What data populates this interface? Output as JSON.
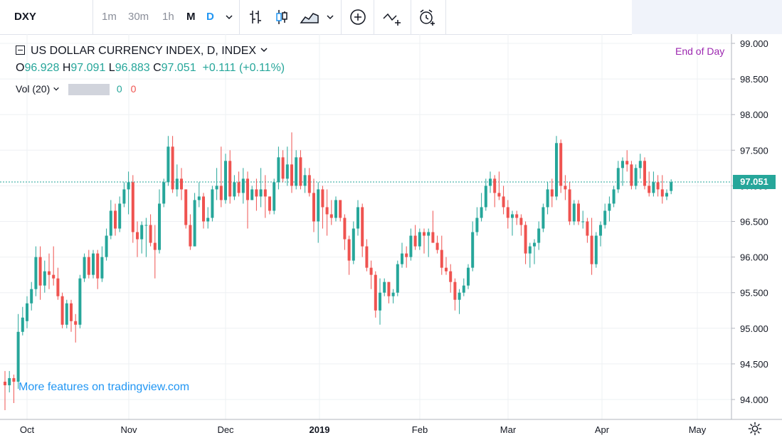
{
  "toolbar": {
    "symbol": "DXY",
    "intervals": [
      "1m",
      "30m",
      "1h",
      "M",
      "D"
    ],
    "active_interval": "D"
  },
  "legend": {
    "title": "US DOLLAR CURRENCY INDEX, D, INDEX",
    "open_label": "O",
    "open": "96.928",
    "high_label": "H",
    "high": "97.091",
    "low_label": "L",
    "low": "96.883",
    "close_label": "C",
    "close": "97.051",
    "change": "+0.111 (+0.11%)",
    "volume_label": "Vol (20)",
    "vol_value_a": "0",
    "vol_value_b": "0"
  },
  "status": {
    "end_of_day": "End of Day"
  },
  "promo": "More features on tradingview.com",
  "last_price_label": "97.051",
  "colors": {
    "up": "#26a69a",
    "down": "#ef5350",
    "accent": "#2196f3",
    "eod": "#9c27b0"
  },
  "chart_data": {
    "type": "candlestick",
    "title": "US DOLLAR CURRENCY INDEX, D, INDEX",
    "x_tick_labels": [
      "Oct",
      "Nov",
      "Dec",
      "2019",
      "Feb",
      "Mar",
      "Apr",
      "May"
    ],
    "y_tick_labels": [
      "99.000",
      "98.500",
      "98.000",
      "97.500",
      "97.000",
      "96.500",
      "96.000",
      "95.500",
      "95.000",
      "94.500",
      "94.000"
    ],
    "ylim": [
      93.8,
      99.05
    ],
    "last_price": 97.051,
    "grid": true,
    "series": [
      {
        "o": 94.25,
        "h": 94.4,
        "l": 93.85,
        "c": 94.2
      },
      {
        "o": 94.2,
        "h": 94.4,
        "l": 94.1,
        "c": 94.3
      },
      {
        "o": 94.3,
        "h": 94.35,
        "l": 93.95,
        "c": 94.25
      },
      {
        "o": 94.25,
        "h": 95.2,
        "l": 94.15,
        "c": 94.95
      },
      {
        "o": 94.95,
        "h": 95.3,
        "l": 94.9,
        "c": 95.15
      },
      {
        "o": 95.1,
        "h": 95.45,
        "l": 95.0,
        "c": 95.35
      },
      {
        "o": 95.35,
        "h": 95.65,
        "l": 95.25,
        "c": 95.55
      },
      {
        "o": 95.55,
        "h": 96.15,
        "l": 95.45,
        "c": 96.0
      },
      {
        "o": 96.0,
        "h": 96.15,
        "l": 95.4,
        "c": 95.6
      },
      {
        "o": 95.6,
        "h": 95.95,
        "l": 95.5,
        "c": 95.8
      },
      {
        "o": 95.8,
        "h": 96.05,
        "l": 95.55,
        "c": 95.75
      },
      {
        "o": 95.75,
        "h": 96.15,
        "l": 95.6,
        "c": 95.7
      },
      {
        "o": 95.7,
        "h": 95.85,
        "l": 95.4,
        "c": 95.45
      },
      {
        "o": 95.45,
        "h": 95.5,
        "l": 95.0,
        "c": 95.05
      },
      {
        "o": 95.05,
        "h": 95.4,
        "l": 95.0,
        "c": 95.35
      },
      {
        "o": 95.35,
        "h": 95.4,
        "l": 94.95,
        "c": 95.1
      },
      {
        "o": 95.1,
        "h": 95.2,
        "l": 94.8,
        "c": 95.05
      },
      {
        "o": 95.05,
        "h": 95.75,
        "l": 95.0,
        "c": 95.7
      },
      {
        "o": 95.7,
        "h": 96.05,
        "l": 95.65,
        "c": 96.0
      },
      {
        "o": 96.0,
        "h": 96.1,
        "l": 95.7,
        "c": 95.75
      },
      {
        "o": 95.75,
        "h": 96.1,
        "l": 95.7,
        "c": 96.05
      },
      {
        "o": 96.05,
        "h": 96.1,
        "l": 95.55,
        "c": 95.7
      },
      {
        "o": 95.7,
        "h": 96.15,
        "l": 95.65,
        "c": 96.0
      },
      {
        "o": 96.0,
        "h": 96.4,
        "l": 95.95,
        "c": 96.3
      },
      {
        "o": 96.3,
        "h": 96.8,
        "l": 96.25,
        "c": 96.65
      },
      {
        "o": 96.65,
        "h": 96.75,
        "l": 96.3,
        "c": 96.4
      },
      {
        "o": 96.4,
        "h": 96.85,
        "l": 96.35,
        "c": 96.75
      },
      {
        "o": 96.75,
        "h": 97.05,
        "l": 96.7,
        "c": 96.95
      },
      {
        "o": 96.95,
        "h": 97.2,
        "l": 96.6,
        "c": 97.05
      },
      {
        "o": 97.05,
        "h": 97.15,
        "l": 96.2,
        "c": 96.35
      },
      {
        "o": 96.35,
        "h": 96.5,
        "l": 96.0,
        "c": 96.25
      },
      {
        "o": 96.25,
        "h": 96.5,
        "l": 96.05,
        "c": 96.45
      },
      {
        "o": 96.45,
        "h": 96.55,
        "l": 96.0,
        "c": 96.45
      },
      {
        "o": 96.45,
        "h": 96.6,
        "l": 96.15,
        "c": 96.2
      },
      {
        "o": 96.2,
        "h": 96.45,
        "l": 95.7,
        "c": 96.1
      },
      {
        "o": 96.1,
        "h": 96.95,
        "l": 96.05,
        "c": 96.75
      },
      {
        "o": 96.75,
        "h": 97.1,
        "l": 96.7,
        "c": 97.05
      },
      {
        "o": 97.05,
        "h": 97.7,
        "l": 97.0,
        "c": 97.55
      },
      {
        "o": 97.55,
        "h": 97.7,
        "l": 96.9,
        "c": 96.95
      },
      {
        "o": 96.95,
        "h": 97.3,
        "l": 96.85,
        "c": 97.1
      },
      {
        "o": 97.1,
        "h": 97.25,
        "l": 96.8,
        "c": 96.95
      },
      {
        "o": 96.95,
        "h": 96.95,
        "l": 96.4,
        "c": 96.45
      },
      {
        "o": 96.45,
        "h": 96.6,
        "l": 96.1,
        "c": 96.15
      },
      {
        "o": 96.15,
        "h": 96.9,
        "l": 96.15,
        "c": 96.8
      },
      {
        "o": 96.8,
        "h": 97.05,
        "l": 96.7,
        "c": 96.85
      },
      {
        "o": 96.85,
        "h": 96.9,
        "l": 96.4,
        "c": 96.5
      },
      {
        "o": 96.5,
        "h": 96.7,
        "l": 96.4,
        "c": 96.55
      },
      {
        "o": 96.55,
        "h": 97.0,
        "l": 96.5,
        "c": 96.95
      },
      {
        "o": 96.95,
        "h": 97.25,
        "l": 96.8,
        "c": 97.0
      },
      {
        "o": 97.0,
        "h": 97.55,
        "l": 96.7,
        "c": 96.8
      },
      {
        "o": 96.8,
        "h": 97.45,
        "l": 96.75,
        "c": 97.35
      },
      {
        "o": 97.35,
        "h": 97.5,
        "l": 96.75,
        "c": 96.85
      },
      {
        "o": 96.85,
        "h": 97.15,
        "l": 96.8,
        "c": 97.05
      },
      {
        "o": 97.05,
        "h": 97.2,
        "l": 96.85,
        "c": 96.9
      },
      {
        "o": 96.9,
        "h": 97.25,
        "l": 96.75,
        "c": 97.1
      },
      {
        "o": 97.1,
        "h": 97.2,
        "l": 96.4,
        "c": 96.8
      },
      {
        "o": 96.8,
        "h": 97.0,
        "l": 96.8,
        "c": 96.95
      },
      {
        "o": 96.95,
        "h": 97.1,
        "l": 96.65,
        "c": 96.85
      },
      {
        "o": 96.85,
        "h": 97.25,
        "l": 96.7,
        "c": 96.95
      },
      {
        "o": 96.95,
        "h": 97.15,
        "l": 96.55,
        "c": 96.85
      },
      {
        "o": 96.85,
        "h": 96.85,
        "l": 96.6,
        "c": 96.65
      },
      {
        "o": 96.65,
        "h": 97.1,
        "l": 96.6,
        "c": 97.05
      },
      {
        "o": 97.05,
        "h": 97.55,
        "l": 96.95,
        "c": 97.4
      },
      {
        "o": 97.4,
        "h": 97.5,
        "l": 97.05,
        "c": 97.1
      },
      {
        "o": 97.1,
        "h": 97.55,
        "l": 97.0,
        "c": 97.3
      },
      {
        "o": 97.3,
        "h": 97.75,
        "l": 96.9,
        "c": 97.0
      },
      {
        "o": 97.0,
        "h": 97.5,
        "l": 96.95,
        "c": 97.4
      },
      {
        "o": 97.4,
        "h": 97.5,
        "l": 96.95,
        "c": 97.0
      },
      {
        "o": 97.0,
        "h": 97.25,
        "l": 96.9,
        "c": 97.15
      },
      {
        "o": 97.15,
        "h": 97.25,
        "l": 96.85,
        "c": 96.9
      },
      {
        "o": 96.9,
        "h": 97.1,
        "l": 96.35,
        "c": 96.5
      },
      {
        "o": 96.5,
        "h": 97.05,
        "l": 96.2,
        "c": 96.95
      },
      {
        "o": 96.95,
        "h": 97.0,
        "l": 96.4,
        "c": 96.7
      },
      {
        "o": 96.7,
        "h": 96.95,
        "l": 96.3,
        "c": 96.6
      },
      {
        "o": 96.6,
        "h": 96.8,
        "l": 96.45,
        "c": 96.55
      },
      {
        "o": 96.55,
        "h": 96.85,
        "l": 96.5,
        "c": 96.8
      },
      {
        "o": 96.8,
        "h": 96.8,
        "l": 96.5,
        "c": 96.55
      },
      {
        "o": 96.55,
        "h": 96.6,
        "l": 96.1,
        "c": 96.25
      },
      {
        "o": 96.25,
        "h": 96.3,
        "l": 95.75,
        "c": 95.95
      },
      {
        "o": 95.95,
        "h": 96.5,
        "l": 95.9,
        "c": 96.4
      },
      {
        "o": 96.4,
        "h": 96.8,
        "l": 96.3,
        "c": 96.7
      },
      {
        "o": 96.7,
        "h": 96.75,
        "l": 96.0,
        "c": 96.15
      },
      {
        "o": 96.15,
        "h": 96.25,
        "l": 95.8,
        "c": 95.85
      },
      {
        "o": 95.85,
        "h": 95.95,
        "l": 95.55,
        "c": 95.75
      },
      {
        "o": 95.75,
        "h": 95.8,
        "l": 95.15,
        "c": 95.25
      },
      {
        "o": 95.25,
        "h": 95.7,
        "l": 95.05,
        "c": 95.5
      },
      {
        "o": 95.5,
        "h": 95.7,
        "l": 95.45,
        "c": 95.65
      },
      {
        "o": 95.65,
        "h": 95.65,
        "l": 95.35,
        "c": 95.45
      },
      {
        "o": 95.45,
        "h": 95.55,
        "l": 95.35,
        "c": 95.5
      },
      {
        "o": 95.5,
        "h": 95.95,
        "l": 95.45,
        "c": 95.9
      },
      {
        "o": 95.9,
        "h": 96.2,
        "l": 95.85,
        "c": 96.05
      },
      {
        "o": 96.05,
        "h": 96.15,
        "l": 95.85,
        "c": 96.0
      },
      {
        "o": 96.0,
        "h": 96.4,
        "l": 95.95,
        "c": 96.3
      },
      {
        "o": 96.3,
        "h": 96.45,
        "l": 96.1,
        "c": 96.15
      },
      {
        "o": 96.15,
        "h": 96.4,
        "l": 96.1,
        "c": 96.35
      },
      {
        "o": 96.35,
        "h": 96.4,
        "l": 96.05,
        "c": 96.3
      },
      {
        "o": 96.3,
        "h": 96.4,
        "l": 96.0,
        "c": 96.35
      },
      {
        "o": 96.35,
        "h": 96.65,
        "l": 96.2,
        "c": 96.2
      },
      {
        "o": 96.2,
        "h": 96.3,
        "l": 96.05,
        "c": 96.1
      },
      {
        "o": 96.1,
        "h": 96.3,
        "l": 95.75,
        "c": 95.85
      },
      {
        "o": 95.85,
        "h": 96.0,
        "l": 95.75,
        "c": 95.8
      },
      {
        "o": 95.8,
        "h": 95.9,
        "l": 95.5,
        "c": 95.65
      },
      {
        "o": 95.65,
        "h": 95.7,
        "l": 95.25,
        "c": 95.4
      },
      {
        "o": 95.4,
        "h": 95.55,
        "l": 95.2,
        "c": 95.5
      },
      {
        "o": 95.5,
        "h": 95.7,
        "l": 95.45,
        "c": 95.6
      },
      {
        "o": 95.6,
        "h": 95.9,
        "l": 95.55,
        "c": 95.85
      },
      {
        "o": 95.85,
        "h": 96.5,
        "l": 95.8,
        "c": 96.35
      },
      {
        "o": 96.35,
        "h": 96.7,
        "l": 96.3,
        "c": 96.55
      },
      {
        "o": 96.55,
        "h": 96.9,
        "l": 96.5,
        "c": 96.7
      },
      {
        "o": 96.7,
        "h": 97.1,
        "l": 96.65,
        "c": 97.0
      },
      {
        "o": 97.0,
        "h": 97.2,
        "l": 96.9,
        "c": 97.1
      },
      {
        "o": 97.1,
        "h": 97.15,
        "l": 96.7,
        "c": 96.9
      },
      {
        "o": 96.9,
        "h": 97.2,
        "l": 96.8,
        "c": 96.85
      },
      {
        "o": 96.85,
        "h": 97.0,
        "l": 96.6,
        "c": 96.7
      },
      {
        "o": 96.7,
        "h": 96.8,
        "l": 96.4,
        "c": 96.55
      },
      {
        "o": 96.55,
        "h": 96.65,
        "l": 96.3,
        "c": 96.6
      },
      {
        "o": 96.6,
        "h": 96.65,
        "l": 96.45,
        "c": 96.55
      },
      {
        "o": 96.55,
        "h": 96.6,
        "l": 96.3,
        "c": 96.45
      },
      {
        "o": 96.45,
        "h": 96.5,
        "l": 95.9,
        "c": 96.05
      },
      {
        "o": 96.05,
        "h": 96.2,
        "l": 95.85,
        "c": 96.15
      },
      {
        "o": 96.15,
        "h": 96.25,
        "l": 95.9,
        "c": 96.2
      },
      {
        "o": 96.2,
        "h": 96.5,
        "l": 96.1,
        "c": 96.4
      },
      {
        "o": 96.4,
        "h": 96.75,
        "l": 96.35,
        "c": 96.7
      },
      {
        "o": 96.7,
        "h": 97.05,
        "l": 96.6,
        "c": 96.95
      },
      {
        "o": 96.95,
        "h": 97.1,
        "l": 96.7,
        "c": 96.85
      },
      {
        "o": 96.85,
        "h": 97.7,
        "l": 96.8,
        "c": 97.6
      },
      {
        "o": 97.6,
        "h": 97.65,
        "l": 96.9,
        "c": 97.0
      },
      {
        "o": 97.0,
        "h": 97.15,
        "l": 96.8,
        "c": 96.95
      },
      {
        "o": 96.95,
        "h": 97.05,
        "l": 96.45,
        "c": 96.5
      },
      {
        "o": 96.5,
        "h": 96.8,
        "l": 96.45,
        "c": 96.75
      },
      {
        "o": 96.75,
        "h": 96.8,
        "l": 96.45,
        "c": 96.5
      },
      {
        "o": 96.5,
        "h": 96.65,
        "l": 96.4,
        "c": 96.5
      },
      {
        "o": 96.5,
        "h": 96.55,
        "l": 96.2,
        "c": 96.3
      },
      {
        "o": 96.3,
        "h": 96.55,
        "l": 95.75,
        "c": 95.9
      },
      {
        "o": 95.9,
        "h": 96.35,
        "l": 95.85,
        "c": 96.3
      },
      {
        "o": 96.3,
        "h": 96.5,
        "l": 96.15,
        "c": 96.45
      },
      {
        "o": 96.45,
        "h": 96.75,
        "l": 96.4,
        "c": 96.65
      },
      {
        "o": 96.65,
        "h": 96.85,
        "l": 96.5,
        "c": 96.75
      },
      {
        "o": 96.75,
        "h": 97.0,
        "l": 96.7,
        "c": 96.95
      },
      {
        "o": 96.95,
        "h": 97.35,
        "l": 96.9,
        "c": 97.25
      },
      {
        "o": 97.25,
        "h": 97.4,
        "l": 97.0,
        "c": 97.35
      },
      {
        "o": 97.35,
        "h": 97.5,
        "l": 97.2,
        "c": 97.3
      },
      {
        "o": 97.3,
        "h": 97.35,
        "l": 96.95,
        "c": 97.0
      },
      {
        "o": 97.0,
        "h": 97.3,
        "l": 96.95,
        "c": 97.25
      },
      {
        "o": 97.25,
        "h": 97.45,
        "l": 97.1,
        "c": 97.35
      },
      {
        "o": 97.35,
        "h": 97.4,
        "l": 96.95,
        "c": 97.0
      },
      {
        "o": 97.0,
        "h": 97.2,
        "l": 96.85,
        "c": 96.9
      },
      {
        "o": 96.9,
        "h": 97.2,
        "l": 96.85,
        "c": 97.05
      },
      {
        "o": 97.05,
        "h": 97.15,
        "l": 96.85,
        "c": 96.95
      },
      {
        "o": 96.95,
        "h": 97.15,
        "l": 96.75,
        "c": 96.85
      },
      {
        "o": 96.85,
        "h": 96.95,
        "l": 96.8,
        "c": 96.9
      },
      {
        "o": 96.928,
        "h": 97.091,
        "l": 96.883,
        "c": 97.051
      }
    ]
  }
}
